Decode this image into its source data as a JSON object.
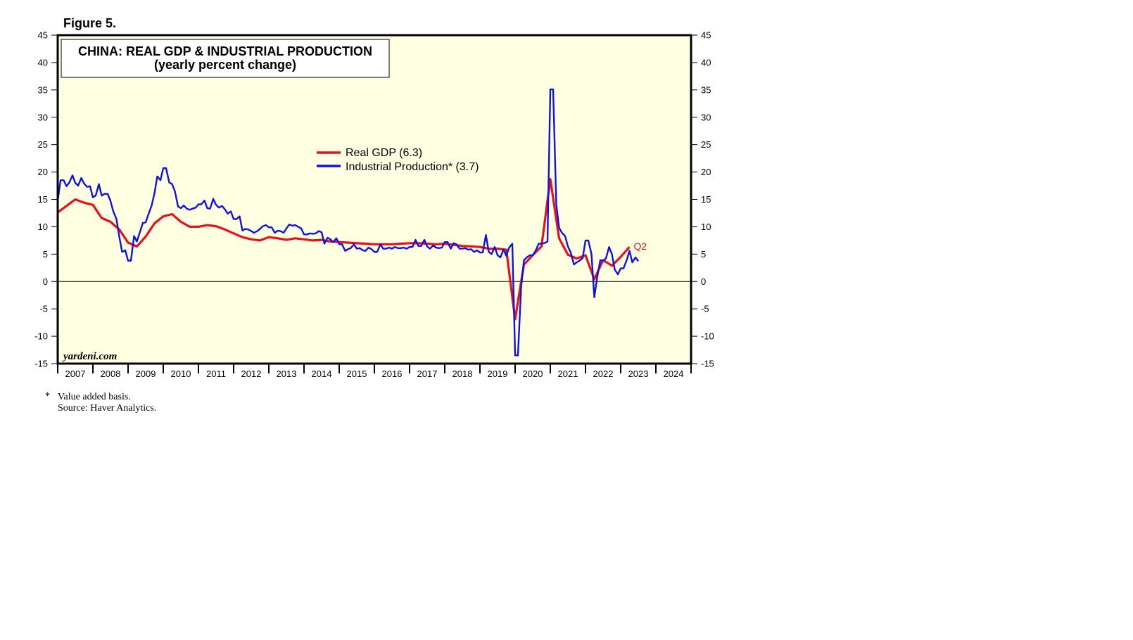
{
  "figure_label": "Figure 5.",
  "colors": {
    "gdp": "#e8101a",
    "ip": "#1010e8",
    "plot_bg": "#ffffe1"
  },
  "chart_data": {
    "type": "line",
    "title": "CHINA: REAL GDP & INDUSTRIAL PRODUCTION",
    "subtitle": "(yearly percent change)",
    "ylim": [
      -15,
      45
    ],
    "xlim": [
      2007,
      2025
    ],
    "yticks": [
      "-15",
      "-10",
      "-5",
      "0",
      "5",
      "10",
      "15",
      "20",
      "25",
      "30",
      "35",
      "40",
      "45"
    ],
    "year_labels": [
      "2007",
      "2008",
      "2009",
      "2010",
      "2011",
      "2012",
      "2013",
      "2014",
      "2015",
      "2016",
      "2017",
      "2018",
      "2019",
      "2020",
      "2021",
      "2022",
      "2023",
      "2024"
    ],
    "grid": false,
    "legend_position": "top-center",
    "series": [
      {
        "name": "Real GDP (6.3)",
        "key": "gdp",
        "points": [
          [
            2007.0,
            12.6
          ],
          [
            2007.25,
            13.8
          ],
          [
            2007.5,
            15.0
          ],
          [
            2007.75,
            14.4
          ],
          [
            2008.0,
            14.0
          ],
          [
            2008.25,
            11.6
          ],
          [
            2008.5,
            10.9
          ],
          [
            2008.75,
            9.5
          ],
          [
            2009.0,
            7.1
          ],
          [
            2009.25,
            6.4
          ],
          [
            2009.5,
            8.2
          ],
          [
            2009.75,
            10.6
          ],
          [
            2010.0,
            11.9
          ],
          [
            2010.25,
            12.3
          ],
          [
            2010.5,
            10.9
          ],
          [
            2010.75,
            10.0
          ],
          [
            2011.0,
            10.0
          ],
          [
            2011.25,
            10.3
          ],
          [
            2011.5,
            10.1
          ],
          [
            2011.75,
            9.5
          ],
          [
            2012.0,
            8.8
          ],
          [
            2012.25,
            8.1
          ],
          [
            2012.5,
            7.7
          ],
          [
            2012.75,
            7.5
          ],
          [
            2013.0,
            8.1
          ],
          [
            2013.25,
            7.9
          ],
          [
            2013.5,
            7.6
          ],
          [
            2013.75,
            7.9
          ],
          [
            2014.0,
            7.7
          ],
          [
            2014.25,
            7.5
          ],
          [
            2014.5,
            7.6
          ],
          [
            2014.75,
            7.3
          ],
          [
            2015.0,
            7.2
          ],
          [
            2015.25,
            7.1
          ],
          [
            2015.5,
            7.0
          ],
          [
            2015.75,
            6.9
          ],
          [
            2016.0,
            6.8
          ],
          [
            2016.25,
            6.8
          ],
          [
            2016.5,
            6.8
          ],
          [
            2016.75,
            6.9
          ],
          [
            2017.0,
            7.0
          ],
          [
            2017.25,
            7.0
          ],
          [
            2017.5,
            6.9
          ],
          [
            2017.75,
            6.8
          ],
          [
            2018.0,
            6.9
          ],
          [
            2018.25,
            6.7
          ],
          [
            2018.5,
            6.5
          ],
          [
            2018.75,
            6.4
          ],
          [
            2019.0,
            6.3
          ],
          [
            2019.25,
            6.0
          ],
          [
            2019.5,
            6.0
          ],
          [
            2019.75,
            5.8
          ],
          [
            2020.0,
            -6.9
          ],
          [
            2020.25,
            3.1
          ],
          [
            2020.5,
            4.8
          ],
          [
            2020.75,
            6.4
          ],
          [
            2021.0,
            18.7
          ],
          [
            2021.25,
            7.9
          ],
          [
            2021.5,
            4.9
          ],
          [
            2021.75,
            4.2
          ],
          [
            2022.0,
            4.8
          ],
          [
            2022.25,
            0.4
          ],
          [
            2022.5,
            3.9
          ],
          [
            2022.75,
            2.9
          ],
          [
            2023.0,
            4.5
          ],
          [
            2023.25,
            6.3
          ]
        ]
      },
      {
        "name": "Industrial Production* (3.7)",
        "key": "ip",
        "points": [
          [
            2007.0,
            14.7
          ],
          [
            2007.08,
            18.5
          ],
          [
            2007.17,
            18.5
          ],
          [
            2007.25,
            17.4
          ],
          [
            2007.33,
            18.1
          ],
          [
            2007.42,
            19.4
          ],
          [
            2007.5,
            18.0
          ],
          [
            2007.58,
            17.5
          ],
          [
            2007.67,
            18.9
          ],
          [
            2007.75,
            17.9
          ],
          [
            2007.83,
            17.3
          ],
          [
            2007.92,
            17.4
          ],
          [
            2008.0,
            15.4
          ],
          [
            2008.08,
            15.7
          ],
          [
            2008.17,
            17.8
          ],
          [
            2008.25,
            15.7
          ],
          [
            2008.33,
            16.0
          ],
          [
            2008.42,
            16.0
          ],
          [
            2008.5,
            14.7
          ],
          [
            2008.58,
            12.8
          ],
          [
            2008.67,
            11.4
          ],
          [
            2008.75,
            8.2
          ],
          [
            2008.83,
            5.4
          ],
          [
            2008.92,
            5.7
          ],
          [
            2009.0,
            3.8
          ],
          [
            2009.08,
            3.8
          ],
          [
            2009.17,
            8.3
          ],
          [
            2009.25,
            7.3
          ],
          [
            2009.33,
            8.9
          ],
          [
            2009.42,
            10.7
          ],
          [
            2009.5,
            10.8
          ],
          [
            2009.58,
            12.3
          ],
          [
            2009.67,
            13.9
          ],
          [
            2009.75,
            16.1
          ],
          [
            2009.83,
            19.2
          ],
          [
            2009.92,
            18.5
          ],
          [
            2010.0,
            20.7
          ],
          [
            2010.08,
            20.7
          ],
          [
            2010.17,
            18.1
          ],
          [
            2010.25,
            17.8
          ],
          [
            2010.33,
            16.5
          ],
          [
            2010.42,
            13.7
          ],
          [
            2010.5,
            13.4
          ],
          [
            2010.58,
            13.9
          ],
          [
            2010.67,
            13.3
          ],
          [
            2010.75,
            13.1
          ],
          [
            2010.83,
            13.3
          ],
          [
            2010.92,
            13.5
          ],
          [
            2011.0,
            14.1
          ],
          [
            2011.08,
            14.1
          ],
          [
            2011.17,
            14.8
          ],
          [
            2011.25,
            13.4
          ],
          [
            2011.33,
            13.3
          ],
          [
            2011.42,
            15.1
          ],
          [
            2011.5,
            14.0
          ],
          [
            2011.58,
            13.5
          ],
          [
            2011.67,
            13.8
          ],
          [
            2011.75,
            13.2
          ],
          [
            2011.83,
            12.4
          ],
          [
            2011.92,
            12.8
          ],
          [
            2012.0,
            11.4
          ],
          [
            2012.08,
            11.4
          ],
          [
            2012.17,
            11.9
          ],
          [
            2012.25,
            9.3
          ],
          [
            2012.33,
            9.6
          ],
          [
            2012.42,
            9.5
          ],
          [
            2012.5,
            9.2
          ],
          [
            2012.58,
            8.9
          ],
          [
            2012.67,
            9.2
          ],
          [
            2012.75,
            9.6
          ],
          [
            2012.83,
            10.1
          ],
          [
            2012.92,
            10.3
          ],
          [
            2013.0,
            9.9
          ],
          [
            2013.08,
            9.9
          ],
          [
            2013.17,
            8.9
          ],
          [
            2013.25,
            9.3
          ],
          [
            2013.33,
            9.2
          ],
          [
            2013.42,
            8.9
          ],
          [
            2013.5,
            9.7
          ],
          [
            2013.58,
            10.4
          ],
          [
            2013.67,
            10.2
          ],
          [
            2013.75,
            10.3
          ],
          [
            2013.83,
            10.0
          ],
          [
            2013.92,
            9.7
          ],
          [
            2014.0,
            8.6
          ],
          [
            2014.08,
            8.6
          ],
          [
            2014.17,
            8.8
          ],
          [
            2014.25,
            8.7
          ],
          [
            2014.33,
            8.8
          ],
          [
            2014.42,
            9.2
          ],
          [
            2014.5,
            9.0
          ],
          [
            2014.58,
            6.9
          ],
          [
            2014.67,
            8.0
          ],
          [
            2014.75,
            7.7
          ],
          [
            2014.83,
            7.2
          ],
          [
            2014.92,
            7.9
          ],
          [
            2015.0,
            6.8
          ],
          [
            2015.08,
            6.8
          ],
          [
            2015.17,
            5.6
          ],
          [
            2015.25,
            5.9
          ],
          [
            2015.33,
            6.1
          ],
          [
            2015.42,
            6.8
          ],
          [
            2015.5,
            6.0
          ],
          [
            2015.58,
            6.1
          ],
          [
            2015.67,
            5.7
          ],
          [
            2015.75,
            5.6
          ],
          [
            2015.83,
            6.2
          ],
          [
            2015.92,
            5.9
          ],
          [
            2016.0,
            5.4
          ],
          [
            2016.08,
            5.4
          ],
          [
            2016.17,
            6.8
          ],
          [
            2016.25,
            6.0
          ],
          [
            2016.33,
            6.0
          ],
          [
            2016.42,
            6.2
          ],
          [
            2016.5,
            6.0
          ],
          [
            2016.58,
            6.3
          ],
          [
            2016.67,
            6.1
          ],
          [
            2016.75,
            6.1
          ],
          [
            2016.83,
            6.2
          ],
          [
            2016.92,
            6.0
          ],
          [
            2017.0,
            6.3
          ],
          [
            2017.08,
            6.3
          ],
          [
            2017.17,
            7.6
          ],
          [
            2017.25,
            6.5
          ],
          [
            2017.33,
            6.5
          ],
          [
            2017.42,
            7.6
          ],
          [
            2017.5,
            6.4
          ],
          [
            2017.58,
            6.0
          ],
          [
            2017.67,
            6.6
          ],
          [
            2017.75,
            6.2
          ],
          [
            2017.83,
            6.1
          ],
          [
            2017.92,
            6.2
          ],
          [
            2018.0,
            7.2
          ],
          [
            2018.08,
            7.2
          ],
          [
            2018.17,
            6.0
          ],
          [
            2018.25,
            7.0
          ],
          [
            2018.33,
            6.8
          ],
          [
            2018.42,
            6.0
          ],
          [
            2018.5,
            6.0
          ],
          [
            2018.58,
            6.1
          ],
          [
            2018.67,
            5.8
          ],
          [
            2018.75,
            5.9
          ],
          [
            2018.83,
            5.4
          ],
          [
            2018.92,
            5.7
          ],
          [
            2019.0,
            5.3
          ],
          [
            2019.08,
            5.3
          ],
          [
            2019.17,
            8.5
          ],
          [
            2019.25,
            5.4
          ],
          [
            2019.33,
            5.0
          ],
          [
            2019.42,
            6.3
          ],
          [
            2019.5,
            4.8
          ],
          [
            2019.58,
            4.4
          ],
          [
            2019.67,
            5.8
          ],
          [
            2019.75,
            4.7
          ],
          [
            2019.83,
            6.2
          ],
          [
            2019.92,
            6.9
          ],
          [
            2020.0,
            -13.5
          ],
          [
            2020.08,
            -13.5
          ],
          [
            2020.17,
            -1.1
          ],
          [
            2020.25,
            3.9
          ],
          [
            2020.33,
            4.4
          ],
          [
            2020.42,
            4.8
          ],
          [
            2020.5,
            4.8
          ],
          [
            2020.58,
            5.6
          ],
          [
            2020.67,
            6.9
          ],
          [
            2020.75,
            6.9
          ],
          [
            2020.83,
            7.0
          ],
          [
            2020.92,
            7.3
          ],
          [
            2021.0,
            35.1
          ],
          [
            2021.08,
            35.1
          ],
          [
            2021.17,
            14.1
          ],
          [
            2021.25,
            9.8
          ],
          [
            2021.33,
            8.9
          ],
          [
            2021.42,
            8.3
          ],
          [
            2021.5,
            6.4
          ],
          [
            2021.58,
            5.3
          ],
          [
            2021.67,
            3.1
          ],
          [
            2021.75,
            3.5
          ],
          [
            2021.83,
            3.8
          ],
          [
            2021.92,
            4.3
          ],
          [
            2022.0,
            7.5
          ],
          [
            2022.08,
            7.5
          ],
          [
            2022.17,
            5.0
          ],
          [
            2022.25,
            -2.9
          ],
          [
            2022.33,
            0.7
          ],
          [
            2022.42,
            3.9
          ],
          [
            2022.5,
            3.8
          ],
          [
            2022.58,
            4.2
          ],
          [
            2022.67,
            6.3
          ],
          [
            2022.75,
            5.0
          ],
          [
            2022.83,
            2.2
          ],
          [
            2022.92,
            1.3
          ],
          [
            2023.0,
            2.4
          ],
          [
            2023.08,
            2.4
          ],
          [
            2023.17,
            3.9
          ],
          [
            2023.25,
            5.6
          ],
          [
            2023.33,
            3.5
          ],
          [
            2023.42,
            4.4
          ],
          [
            2023.5,
            3.7
          ]
        ]
      }
    ],
    "annotation": "Q2",
    "watermark": "yardeni.com",
    "footnote_marker": "*",
    "footnote": "Value added basis.",
    "source": "Source: Haver Analytics."
  }
}
